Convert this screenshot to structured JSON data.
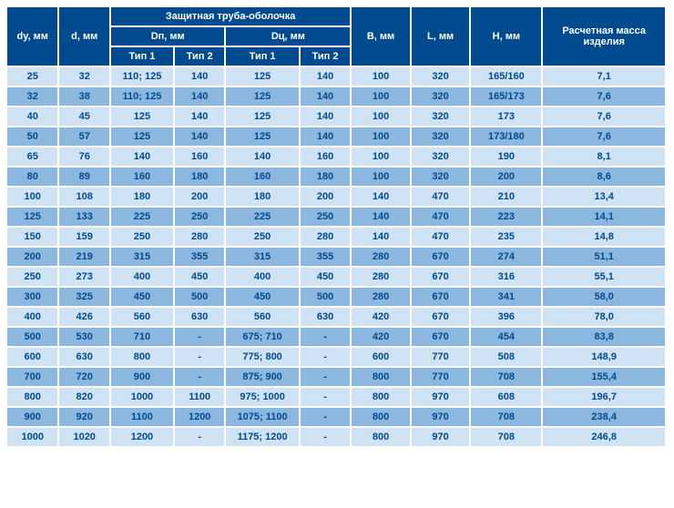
{
  "type": "table",
  "colors": {
    "header_bg": "#004a8f",
    "header_text": "#ffffff",
    "header_border": "#5a8bc0",
    "row_light": "#cfe3f5",
    "row_dark": "#8cb8df",
    "cell_text": "#004a8f",
    "cell_border": "#ffffff"
  },
  "header": {
    "dy": "dу, мм",
    "d": "d, мм",
    "shell": "Защитная труба-оболочка",
    "dp": "Dп, мм",
    "dc": "Dц, мм",
    "tip1": "Тип 1",
    "tip2": "Тип 2",
    "b": "В, мм",
    "l": "L, мм",
    "h": "Н, мм",
    "mass": "Расчетная масса изделия"
  },
  "columns": [
    "dy",
    "d",
    "dp1",
    "dp2",
    "dc1",
    "dc2",
    "b",
    "l",
    "h",
    "mass"
  ],
  "rows": [
    [
      "25",
      "32",
      "110; 125",
      "140",
      "125",
      "140",
      "100",
      "320",
      "165/160",
      "7,1"
    ],
    [
      "32",
      "38",
      "110; 125",
      "140",
      "125",
      "140",
      "100",
      "320",
      "165/173",
      "7,6"
    ],
    [
      "40",
      "45",
      "125",
      "140",
      "125",
      "140",
      "100",
      "320",
      "173",
      "7,6"
    ],
    [
      "50",
      "57",
      "125",
      "140",
      "125",
      "140",
      "100",
      "320",
      "173/180",
      "7,6"
    ],
    [
      "65",
      "76",
      "140",
      "160",
      "140",
      "160",
      "100",
      "320",
      "190",
      "8,1"
    ],
    [
      "80",
      "89",
      "160",
      "180",
      "160",
      "180",
      "100",
      "320",
      "200",
      "8,6"
    ],
    [
      "100",
      "108",
      "180",
      "200",
      "180",
      "200",
      "140",
      "470",
      "210",
      "13,4"
    ],
    [
      "125",
      "133",
      "225",
      "250",
      "225",
      "250",
      "140",
      "470",
      "223",
      "14,1"
    ],
    [
      "150",
      "159",
      "250",
      "280",
      "250",
      "280",
      "140",
      "470",
      "235",
      "14,8"
    ],
    [
      "200",
      "219",
      "315",
      "355",
      "315",
      "355",
      "280",
      "670",
      "274",
      "51,1"
    ],
    [
      "250",
      "273",
      "400",
      "450",
      "400",
      "450",
      "280",
      "670",
      "316",
      "55,1"
    ],
    [
      "300",
      "325",
      "450",
      "500",
      "450",
      "500",
      "280",
      "670",
      "341",
      "58,0"
    ],
    [
      "400",
      "426",
      "560",
      "630",
      "560",
      "630",
      "420",
      "670",
      "396",
      "78,0"
    ],
    [
      "500",
      "530",
      "710",
      "-",
      "675; 710",
      "-",
      "420",
      "670",
      "454",
      "83,8"
    ],
    [
      "600",
      "630",
      "800",
      "-",
      "775; 800",
      "-",
      "600",
      "770",
      "508",
      "148,9"
    ],
    [
      "700",
      "720",
      "900",
      "-",
      "875; 900",
      "-",
      "800",
      "770",
      "708",
      "155,4"
    ],
    [
      "800",
      "820",
      "1000",
      "1100",
      "975; 1000",
      "-",
      "800",
      "970",
      "608",
      "196,7"
    ],
    [
      "900",
      "920",
      "1100",
      "1200",
      "1075; 1100",
      "-",
      "800",
      "970",
      "708",
      "238,4"
    ],
    [
      "1000",
      "1020",
      "1200",
      "-",
      "1175; 1200",
      "-",
      "800",
      "970",
      "708",
      "246,8"
    ]
  ]
}
